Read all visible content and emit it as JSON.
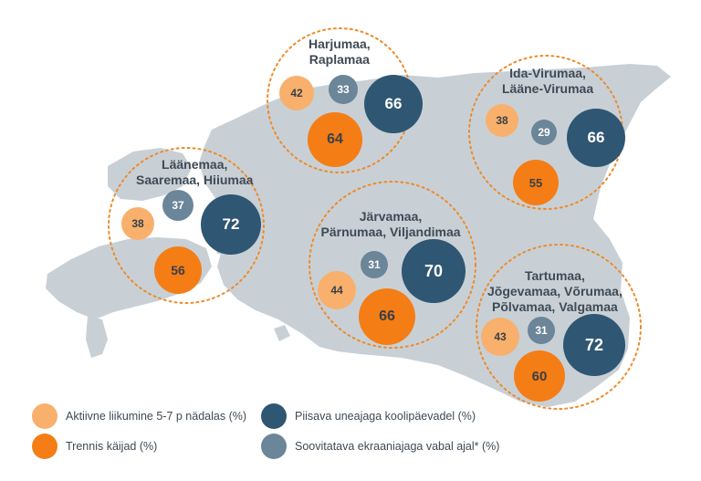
{
  "colors": {
    "land": "#c8d0d6",
    "sea": "#ffffff",
    "ring": "#ef8a2a",
    "aktiivne": "#f8b06c",
    "trennis": "#f57d16",
    "uneaeg": "#2f5673",
    "ekraan": "#6b8599"
  },
  "regions": [
    {
      "id": "harju",
      "label_lines": [
        "Harjumaa,",
        "Raplamaa"
      ],
      "aktiivne": "42",
      "ekraan": "33",
      "uneaeg": "66",
      "trennis": "64"
    },
    {
      "id": "ida",
      "label_lines": [
        "Ida-Virumaa,",
        "Lääne-Virumaa"
      ],
      "aktiivne": "38",
      "ekraan": "29",
      "uneaeg": "66",
      "trennis": "55"
    },
    {
      "id": "laane",
      "label_lines": [
        "Läänemaa,",
        "Saaremaa, Hiiumaa"
      ],
      "aktiivne": "38",
      "ekraan": "37",
      "uneaeg": "72",
      "trennis": "56"
    },
    {
      "id": "jarva",
      "label_lines": [
        "Järvamaa,",
        "Pärnumaa, Viljandimaa"
      ],
      "aktiivne": "44",
      "ekraan": "31",
      "uneaeg": "70",
      "trennis": "66"
    },
    {
      "id": "tartu",
      "label_lines": [
        "Tartumaa,",
        "Jõgevamaa, Võrumaa,",
        "Põlvamaa, Valgamaa"
      ],
      "aktiivne": "43",
      "ekraan": "31",
      "uneaeg": "72",
      "trennis": "60"
    }
  ],
  "legend": {
    "aktiivne": "Aktiivne liikumine 5-7 p nädalas (%)",
    "trennis": "Trennis käijad (%)",
    "uneaeg": "Piisava uneajaga koolipäevadel (%)",
    "ekraan": "Soovitatava ekraaniajaga vabal ajal* (%)"
  }
}
